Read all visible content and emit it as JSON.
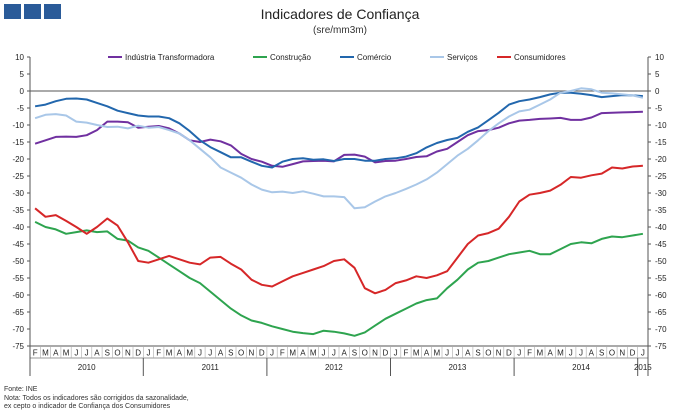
{
  "header": {
    "title": "Indicadores de Confiança",
    "subtitle": "(sre/mm3m)"
  },
  "footer": {
    "source": "Fonte: INE",
    "note_line1": "Nota: Todos os indicadores são corrigidos da sazonalidade,",
    "note_line2": "ex cepto o indicador de Confiança dos Consumidores"
  },
  "chart_data": {
    "type": "line",
    "title": "Indicadores de Confiança",
    "subtitle": "(sre/mm3m)",
    "xlabel": "",
    "ylabel": "",
    "ylim": [
      -75,
      10
    ],
    "y_ticks": [
      10,
      5,
      0,
      -5,
      -10,
      -15,
      -20,
      -25,
      -30,
      -35,
      -40,
      -45,
      -50,
      -55,
      -60,
      -65,
      -70,
      -75
    ],
    "grid": false,
    "legend_position": "top",
    "x_month_labels": [
      "F",
      "M",
      "A",
      "M",
      "J",
      "J",
      "A",
      "S",
      "O",
      "N",
      "D",
      "J",
      "F",
      "M",
      "A",
      "M",
      "J",
      "J",
      "A",
      "S",
      "O",
      "N",
      "D",
      "J",
      "F",
      "M",
      "A",
      "M",
      "J",
      "J",
      "A",
      "S",
      "O",
      "N",
      "D",
      "J",
      "F",
      "M",
      "A",
      "M",
      "J",
      "J",
      "A",
      "S",
      "O",
      "N",
      "D",
      "J",
      "F",
      "M",
      "A",
      "M",
      "J",
      "J",
      "A",
      "S",
      "O",
      "N",
      "D",
      "J"
    ],
    "x_year_labels": [
      {
        "label": "2010",
        "month_index": 5
      },
      {
        "label": "2011",
        "month_index": 17
      },
      {
        "label": "2012",
        "month_index": 29
      },
      {
        "label": "2013",
        "month_index": 41
      },
      {
        "label": "2014",
        "month_index": 53
      },
      {
        "label": "2015",
        "month_index": 59
      }
    ],
    "series": [
      {
        "name": "Indústria Transformadora",
        "color": "#7030a0",
        "values": [
          -15.5,
          -14.5,
          -13.5,
          -13.4,
          -13.5,
          -13,
          -11.5,
          -9,
          -9,
          -9.2,
          -10.8,
          -10.5,
          -10.3,
          -11,
          -12.5,
          -14.5,
          -15,
          -14.3,
          -14.8,
          -16,
          -18.5,
          -20,
          -20.8,
          -22,
          -22.3,
          -21.5,
          -20.7,
          -20.6,
          -20.5,
          -20.7,
          -18.8,
          -18.7,
          -19.3,
          -21,
          -20.6,
          -20.5,
          -20,
          -19.4,
          -19.2,
          -17.8,
          -17,
          -15,
          -13,
          -11.8,
          -11.5,
          -10.8,
          -9.5,
          -8.7,
          -8.5,
          -8.2,
          -8.1,
          -7.9,
          -8.5,
          -8.5,
          -7.8,
          -6.5,
          -6.4,
          -6.3,
          -6.2,
          -6.1
        ]
      },
      {
        "name": "Construção",
        "color": "#2ea44f",
        "values": [
          -38.5,
          -40,
          -40.7,
          -42,
          -41.5,
          -41,
          -41.5,
          -41.3,
          -43.5,
          -44,
          -46,
          -47,
          -49,
          -51,
          -53,
          -55,
          -56.5,
          -59,
          -61.5,
          -64,
          -66,
          -67.5,
          -68.2,
          -69.2,
          -70,
          -70.8,
          -71.2,
          -71.5,
          -70.5,
          -70.8,
          -71.3,
          -72,
          -71,
          -69,
          -67,
          -65.5,
          -64,
          -62.5,
          -61.5,
          -61,
          -58,
          -55.5,
          -52.5,
          -50.5,
          -50,
          -49,
          -48,
          -47.5,
          -47,
          -48,
          -48,
          -46.5,
          -45,
          -44.5,
          -44.8,
          -43.5,
          -42.8,
          -43,
          -42.5,
          -42
        ]
      },
      {
        "name": "Comércio",
        "color": "#2267ad",
        "values": [
          -4.5,
          -4,
          -3,
          -2.3,
          -2.2,
          -2.5,
          -3.5,
          -4.5,
          -5.8,
          -6.5,
          -7.2,
          -7.5,
          -7.5,
          -8,
          -9.5,
          -11.8,
          -14.5,
          -16.5,
          -18,
          -19.5,
          -19.5,
          -20.8,
          -22,
          -22.5,
          -20.8,
          -20,
          -19.8,
          -20.2,
          -20.1,
          -20.6,
          -20,
          -20,
          -20.5,
          -20.5,
          -20,
          -19.8,
          -19.3,
          -18.3,
          -16.6,
          -15.3,
          -14.4,
          -13.8,
          -12,
          -10.7,
          -8.6,
          -6.4,
          -4,
          -3,
          -2.5,
          -1.8,
          -1,
          -0.5,
          -0.5,
          -0.8,
          -1.2,
          -1.8,
          -1.5,
          -1.2,
          -1.3,
          -1.5
        ]
      },
      {
        "name": "Serviços",
        "color": "#a9c7e8",
        "values": [
          -8,
          -7,
          -6.8,
          -7.2,
          -9,
          -9.3,
          -10,
          -10.6,
          -10.5,
          -11,
          -10.2,
          -10.8,
          -10.6,
          -11.5,
          -12.5,
          -14.5,
          -17,
          -19.5,
          -22.5,
          -24,
          -25.5,
          -27.5,
          -29,
          -29.8,
          -29.6,
          -30,
          -29.5,
          -30.2,
          -31,
          -31,
          -31.2,
          -34.5,
          -34.2,
          -32.5,
          -31,
          -30,
          -28.8,
          -27.5,
          -26,
          -24,
          -21.5,
          -19,
          -17,
          -14.5,
          -11.8,
          -9.5,
          -7.5,
          -6,
          -5.5,
          -4,
          -2.5,
          -0.5,
          0,
          0.8,
          0.5,
          -0.5,
          -0.7,
          -1,
          -1.3,
          -2
        ]
      },
      {
        "name": "Consumidores",
        "color": "#d62728",
        "values": [
          -34.5,
          -37,
          -36.5,
          -38.2,
          -40,
          -42,
          -40,
          -37.5,
          -39.6,
          -44.5,
          -50,
          -50.5,
          -49.5,
          -48.5,
          -49.5,
          -50.5,
          -51,
          -49,
          -48.8,
          -50.8,
          -52.5,
          -55.5,
          -57,
          -57.5,
          -56,
          -54.5,
          -53.5,
          -52.5,
          -51.5,
          -50,
          -49.5,
          -52,
          -58,
          -59.5,
          -58.5,
          -56.5,
          -55.7,
          -54.5,
          -55,
          -54.2,
          -53,
          -49,
          -45,
          -42.5,
          -41.8,
          -40.5,
          -37,
          -32.5,
          -30.5,
          -30,
          -29.3,
          -27.6,
          -25.3,
          -25.5,
          -24.8,
          -24.3,
          -22.5,
          -22.8,
          -22.2,
          -22
        ]
      }
    ]
  }
}
